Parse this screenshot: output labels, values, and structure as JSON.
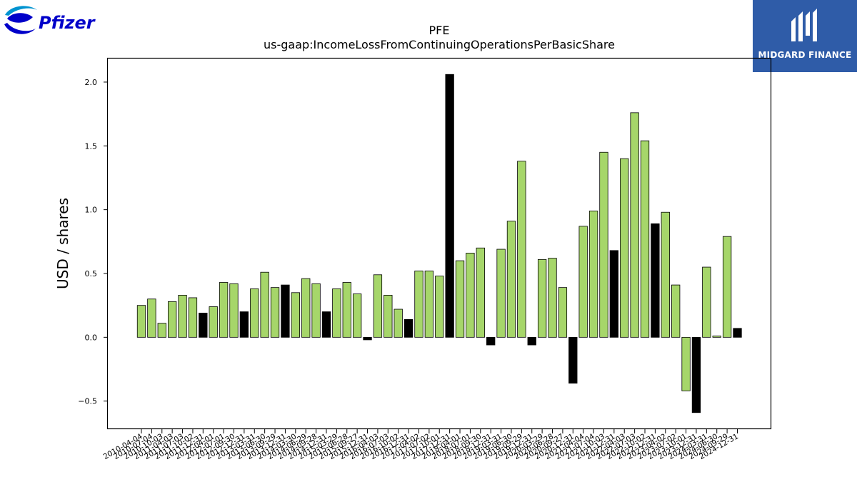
{
  "brand_left": {
    "text": "Pfizer",
    "colors": [
      "#0000c9",
      "#0093d0"
    ]
  },
  "brand_right": {
    "text": "MIDGARD FINANCE",
    "bg": "#2f5ca8"
  },
  "chart_data": {
    "type": "bar",
    "title": "PFE",
    "subtitle": "us-gaap:IncomeLossFromContinuingOperationsPerBasicShare",
    "ylabel": "USD / shares",
    "xlabel": "",
    "ylim": [
      -0.72,
      2.19
    ],
    "yticks": [
      -0.5,
      0.0,
      0.5,
      1.0,
      1.5,
      2.0
    ],
    "ytick_labels": [
      "−0.5",
      "0.0",
      "0.5",
      "1.0",
      "1.5",
      "2.0"
    ],
    "colors": {
      "quarter": "#a6d66a",
      "annual": "#000000",
      "edge": "#000000"
    },
    "categories": [
      "2010-04-04",
      "2010-07-04",
      "2010-10-03",
      "2011-04-03",
      "2011-07-03",
      "2011-10-02",
      "2011-12-31",
      "2012-04-01",
      "2012-07-01",
      "2012-09-30",
      "2012-12-31",
      "2013-03-31",
      "2013-06-30",
      "2013-09-29",
      "2013-12-31",
      "2014-03-30",
      "2014-06-29",
      "2014-09-28",
      "2014-12-31",
      "2015-03-29",
      "2015-06-28",
      "2015-09-27",
      "2015-12-31",
      "2016-04-03",
      "2016-07-03",
      "2016-10-02",
      "2016-12-31",
      "2017-04-02",
      "2017-07-02",
      "2017-10-01",
      "2017-12-31",
      "2018-04-01",
      "2018-07-01",
      "2018-09-30",
      "2018-12-31",
      "2019-03-31",
      "2019-06-30",
      "2019-09-29",
      "2019-12-31",
      "2020-03-29",
      "2020-06-28",
      "2020-09-27",
      "2020-12-31",
      "2021-04-04",
      "2021-07-04",
      "2021-10-03",
      "2021-12-31",
      "2022-04-03",
      "2022-07-03",
      "2022-10-02",
      "2022-12-31",
      "2023-04-02",
      "2023-07-02",
      "2023-10-01",
      "2023-12-31",
      "2024-03-31",
      "2024-06-30",
      "2024-09-29",
      "2024-12-31"
    ],
    "values": [
      0.25,
      0.3,
      0.11,
      0.28,
      0.33,
      0.31,
      0.19,
      0.24,
      0.43,
      0.42,
      0.2,
      0.38,
      0.51,
      0.39,
      0.41,
      0.35,
      0.46,
      0.42,
      0.2,
      0.38,
      0.43,
      0.34,
      -0.02,
      0.49,
      0.33,
      0.22,
      0.14,
      0.52,
      0.52,
      0.48,
      2.06,
      0.6,
      0.66,
      0.7,
      -0.06,
      0.69,
      0.91,
      1.38,
      -0.06,
      0.61,
      0.62,
      0.39,
      -0.36,
      0.87,
      0.99,
      1.45,
      0.68,
      1.4,
      1.76,
      1.54,
      0.89,
      0.98,
      0.41,
      -0.42,
      -0.59,
      0.55,
      0.01,
      0.79,
      0.07
    ],
    "annual": [
      false,
      false,
      false,
      false,
      false,
      false,
      true,
      false,
      false,
      false,
      true,
      false,
      false,
      false,
      true,
      false,
      false,
      false,
      true,
      false,
      false,
      false,
      true,
      false,
      false,
      false,
      true,
      false,
      false,
      false,
      true,
      false,
      false,
      false,
      true,
      false,
      false,
      false,
      true,
      false,
      false,
      false,
      true,
      false,
      false,
      false,
      true,
      false,
      false,
      false,
      true,
      false,
      false,
      false,
      true,
      false,
      false,
      false,
      true
    ],
    "grid": false,
    "legend": "none"
  }
}
